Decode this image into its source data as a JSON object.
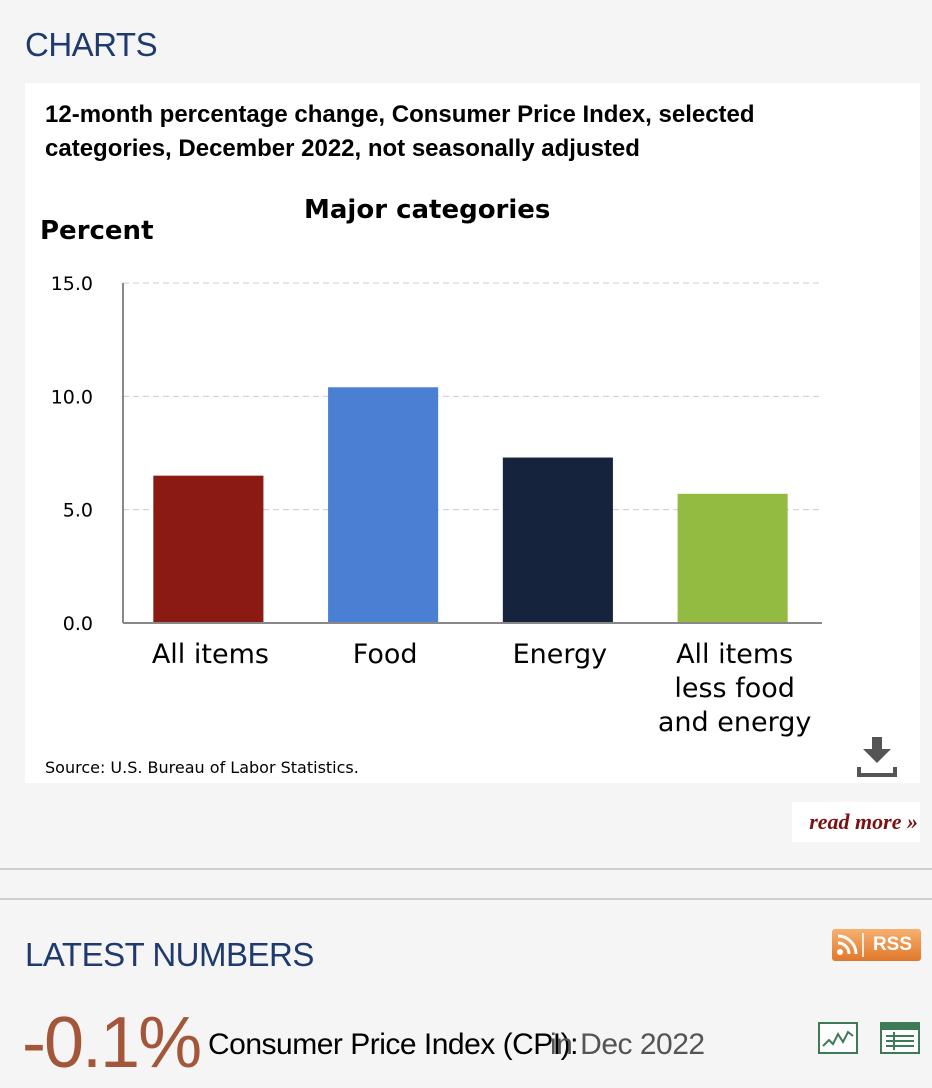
{
  "charts_section": {
    "title": "CHARTS",
    "read_more": "read more »",
    "download_icon": "download-icon"
  },
  "chart_data": {
    "type": "bar",
    "title": "12-month percentage change, Consumer Price Index, selected categories, December 2022, not seasonally adjusted",
    "subtitle": "Major categories",
    "ylabel": "Percent",
    "xlabel": "",
    "categories": [
      "All items",
      "Food",
      "Energy",
      "All items less food and energy"
    ],
    "values": [
      6.5,
      10.4,
      7.3,
      5.7
    ],
    "colors": [
      "#8b1a12",
      "#4a7fd4",
      "#16233c",
      "#93bb41"
    ],
    "ylim": [
      0,
      15
    ],
    "yticks": [
      "15.0",
      "10.0",
      "5.0",
      "0.0"
    ],
    "grid": true,
    "source": "Source: U.S. Bureau of Labor Statistics."
  },
  "latest_numbers": {
    "title": "LATEST NUMBERS",
    "rss_label": "RSS",
    "cpi_value": "-0.1%",
    "cpi_name": "Consumer Price Index (CPI):",
    "cpi_period": "in Dec 2022",
    "icons": [
      "chart-icon",
      "table-icon"
    ]
  }
}
